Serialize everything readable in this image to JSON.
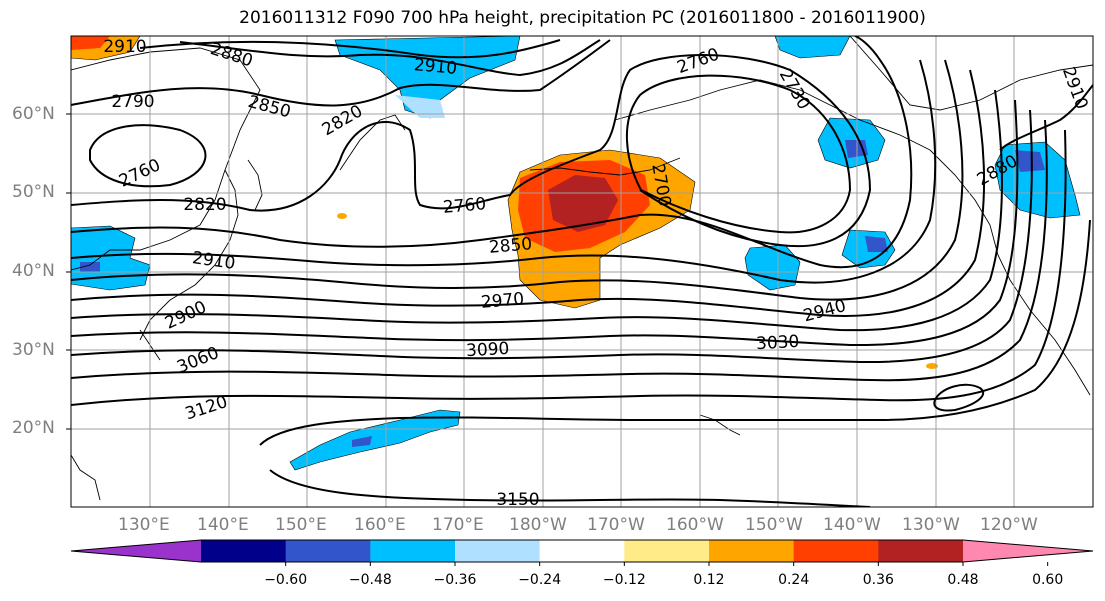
{
  "title": "2016011312 F090 700 hPa height, precipitation PC (2016011800 - 2016011900)",
  "lat_labels": [
    "60°N",
    "50°N",
    "40°N",
    "30°N",
    "20°N"
  ],
  "lon_labels": [
    "130°E",
    "140°E",
    "150°E",
    "160°E",
    "170°E",
    "180°W",
    "170°W",
    "160°W",
    "150°W",
    "140°W",
    "130°W",
    "120°W"
  ],
  "contour_labels": [
    "2910",
    "2880",
    "2910",
    "2790",
    "2850",
    "2820",
    "2760",
    "2820",
    "2760",
    "2760",
    "2730",
    "2700",
    "2850",
    "2910",
    "2970",
    "2940",
    "2900",
    "3060",
    "3090",
    "3030",
    "3120",
    "3150",
    "2880",
    "2910"
  ],
  "colorbar": {
    "colors": [
      "#9933cc",
      "#00008b",
      "#3355cc",
      "#00bfff",
      "#b0e0ff",
      "#ffffff",
      "#ffeb88",
      "#ffa500",
      "#ff4000",
      "#b22222",
      "#ff88b0"
    ],
    "tick_labels": [
      "−0.60",
      "−0.48",
      "−0.36",
      "−0.24",
      "−0.12",
      "0.12",
      "0.24",
      "0.36",
      "0.48",
      "0.60"
    ]
  }
}
